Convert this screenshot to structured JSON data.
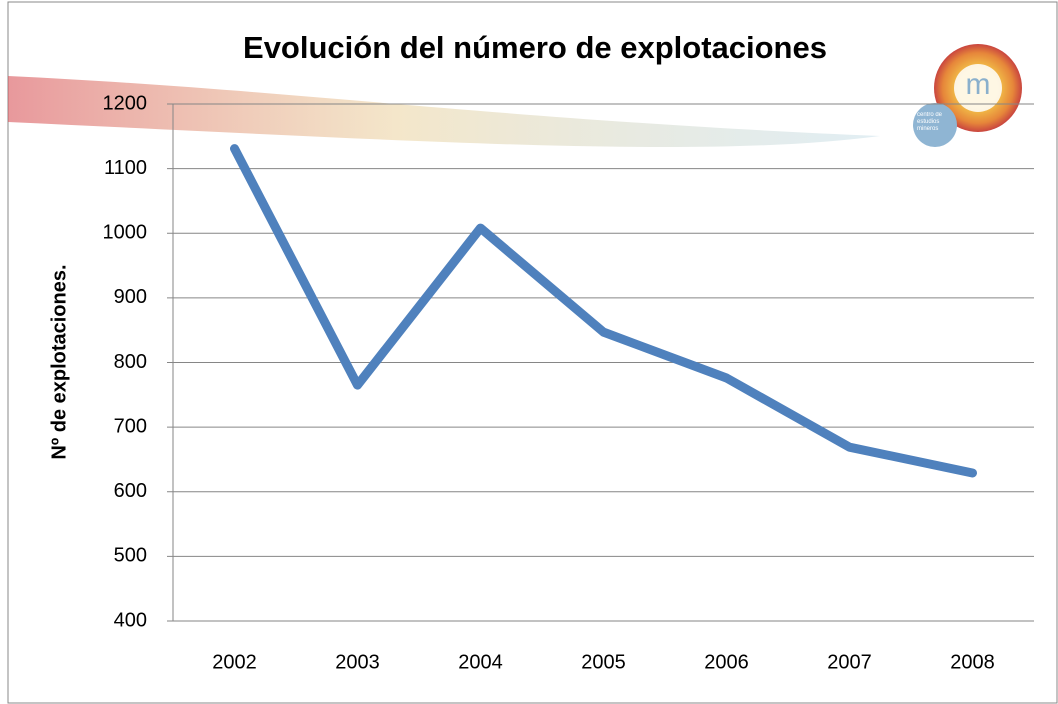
{
  "chart_data": {
    "type": "line",
    "title": "Evolución del número de explotaciones",
    "y_label": "Nº de explotaciones.",
    "categories": [
      "2002",
      "2003",
      "2004",
      "2005",
      "2006",
      "2007",
      "2008"
    ],
    "series": [
      {
        "name": "Nº de explotaciones",
        "color": "#4f81bd",
        "values": [
          1131,
          765,
          1008,
          847,
          776,
          669,
          629
        ]
      }
    ],
    "ylim": [
      400,
      1200
    ],
    "yticks": [
      400,
      500,
      600,
      700,
      800,
      900,
      1000,
      1100,
      1200
    ],
    "grid": true
  },
  "logo": {
    "mark": "m",
    "text": "centro de estudios mineros"
  }
}
